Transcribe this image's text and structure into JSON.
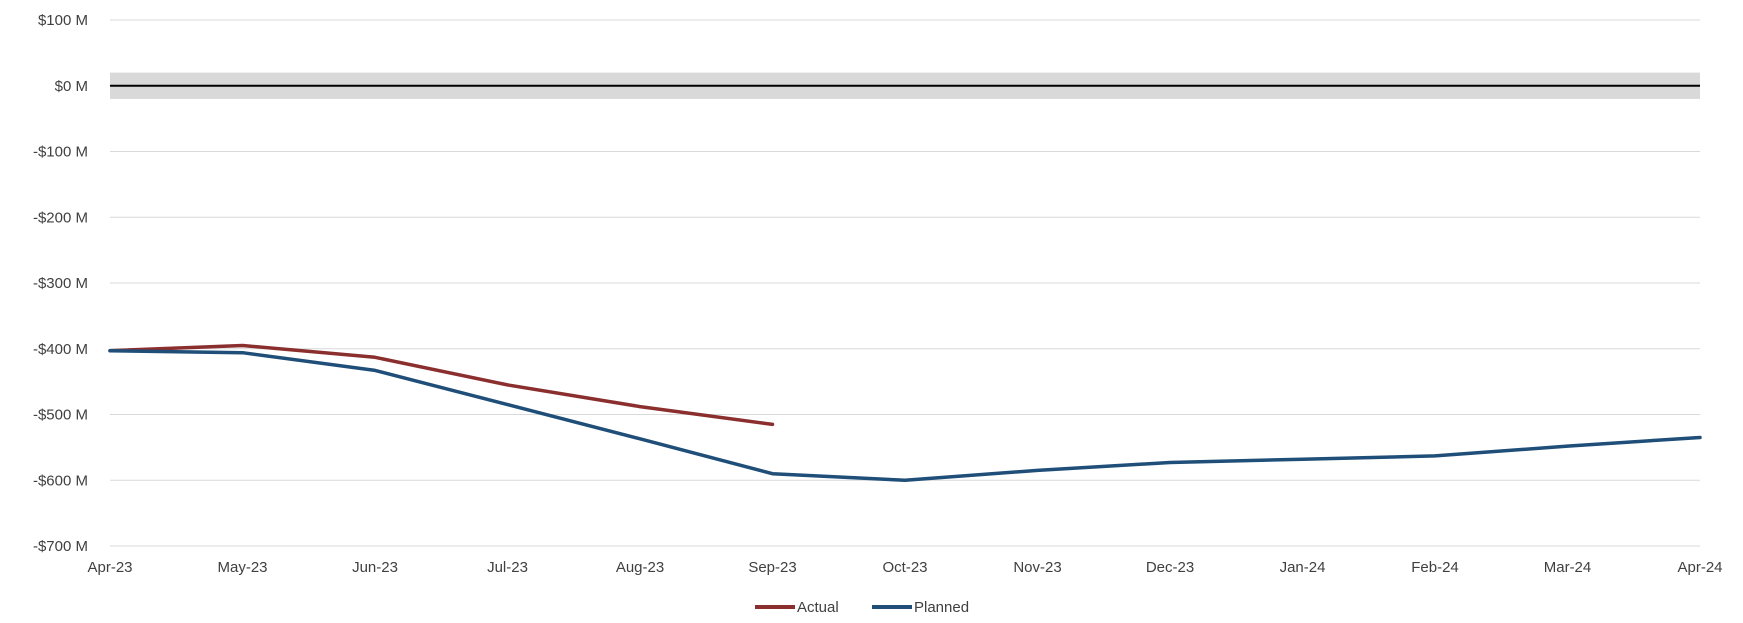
{
  "chart_data": {
    "type": "line",
    "title": "",
    "xlabel": "",
    "ylabel": "",
    "categories": [
      "Apr-23",
      "May-23",
      "Jun-23",
      "Jul-23",
      "Aug-23",
      "Sep-23",
      "Oct-23",
      "Nov-23",
      "Dec-23",
      "Jan-24",
      "Feb-24",
      "Mar-24",
      "Apr-24"
    ],
    "ylim": [
      -700,
      100
    ],
    "yticks": [
      100,
      0,
      -100,
      -200,
      -300,
      -400,
      -500,
      -600,
      -700
    ],
    "ytick_labels": [
      "$100 M",
      "$0 M",
      "-$100 M",
      "-$200 M",
      "-$300 M",
      "-$400 M",
      "-$500 M",
      "-$600 M",
      "-$700 M"
    ],
    "zero_band": [
      -20,
      20
    ],
    "grid": true,
    "legend_position": "bottom",
    "series": [
      {
        "name": "Actual",
        "color": "#8B2E2E",
        "values": [
          -403,
          -395,
          -413,
          -455,
          -488,
          -515,
          null,
          null,
          null,
          null,
          null,
          null,
          null
        ]
      },
      {
        "name": "Planned",
        "color": "#1F4E79",
        "values": [
          -403,
          -406,
          -433,
          -485,
          -537,
          -590,
          -600,
          -585,
          -573,
          -568,
          -563,
          -548,
          -535
        ]
      }
    ]
  }
}
